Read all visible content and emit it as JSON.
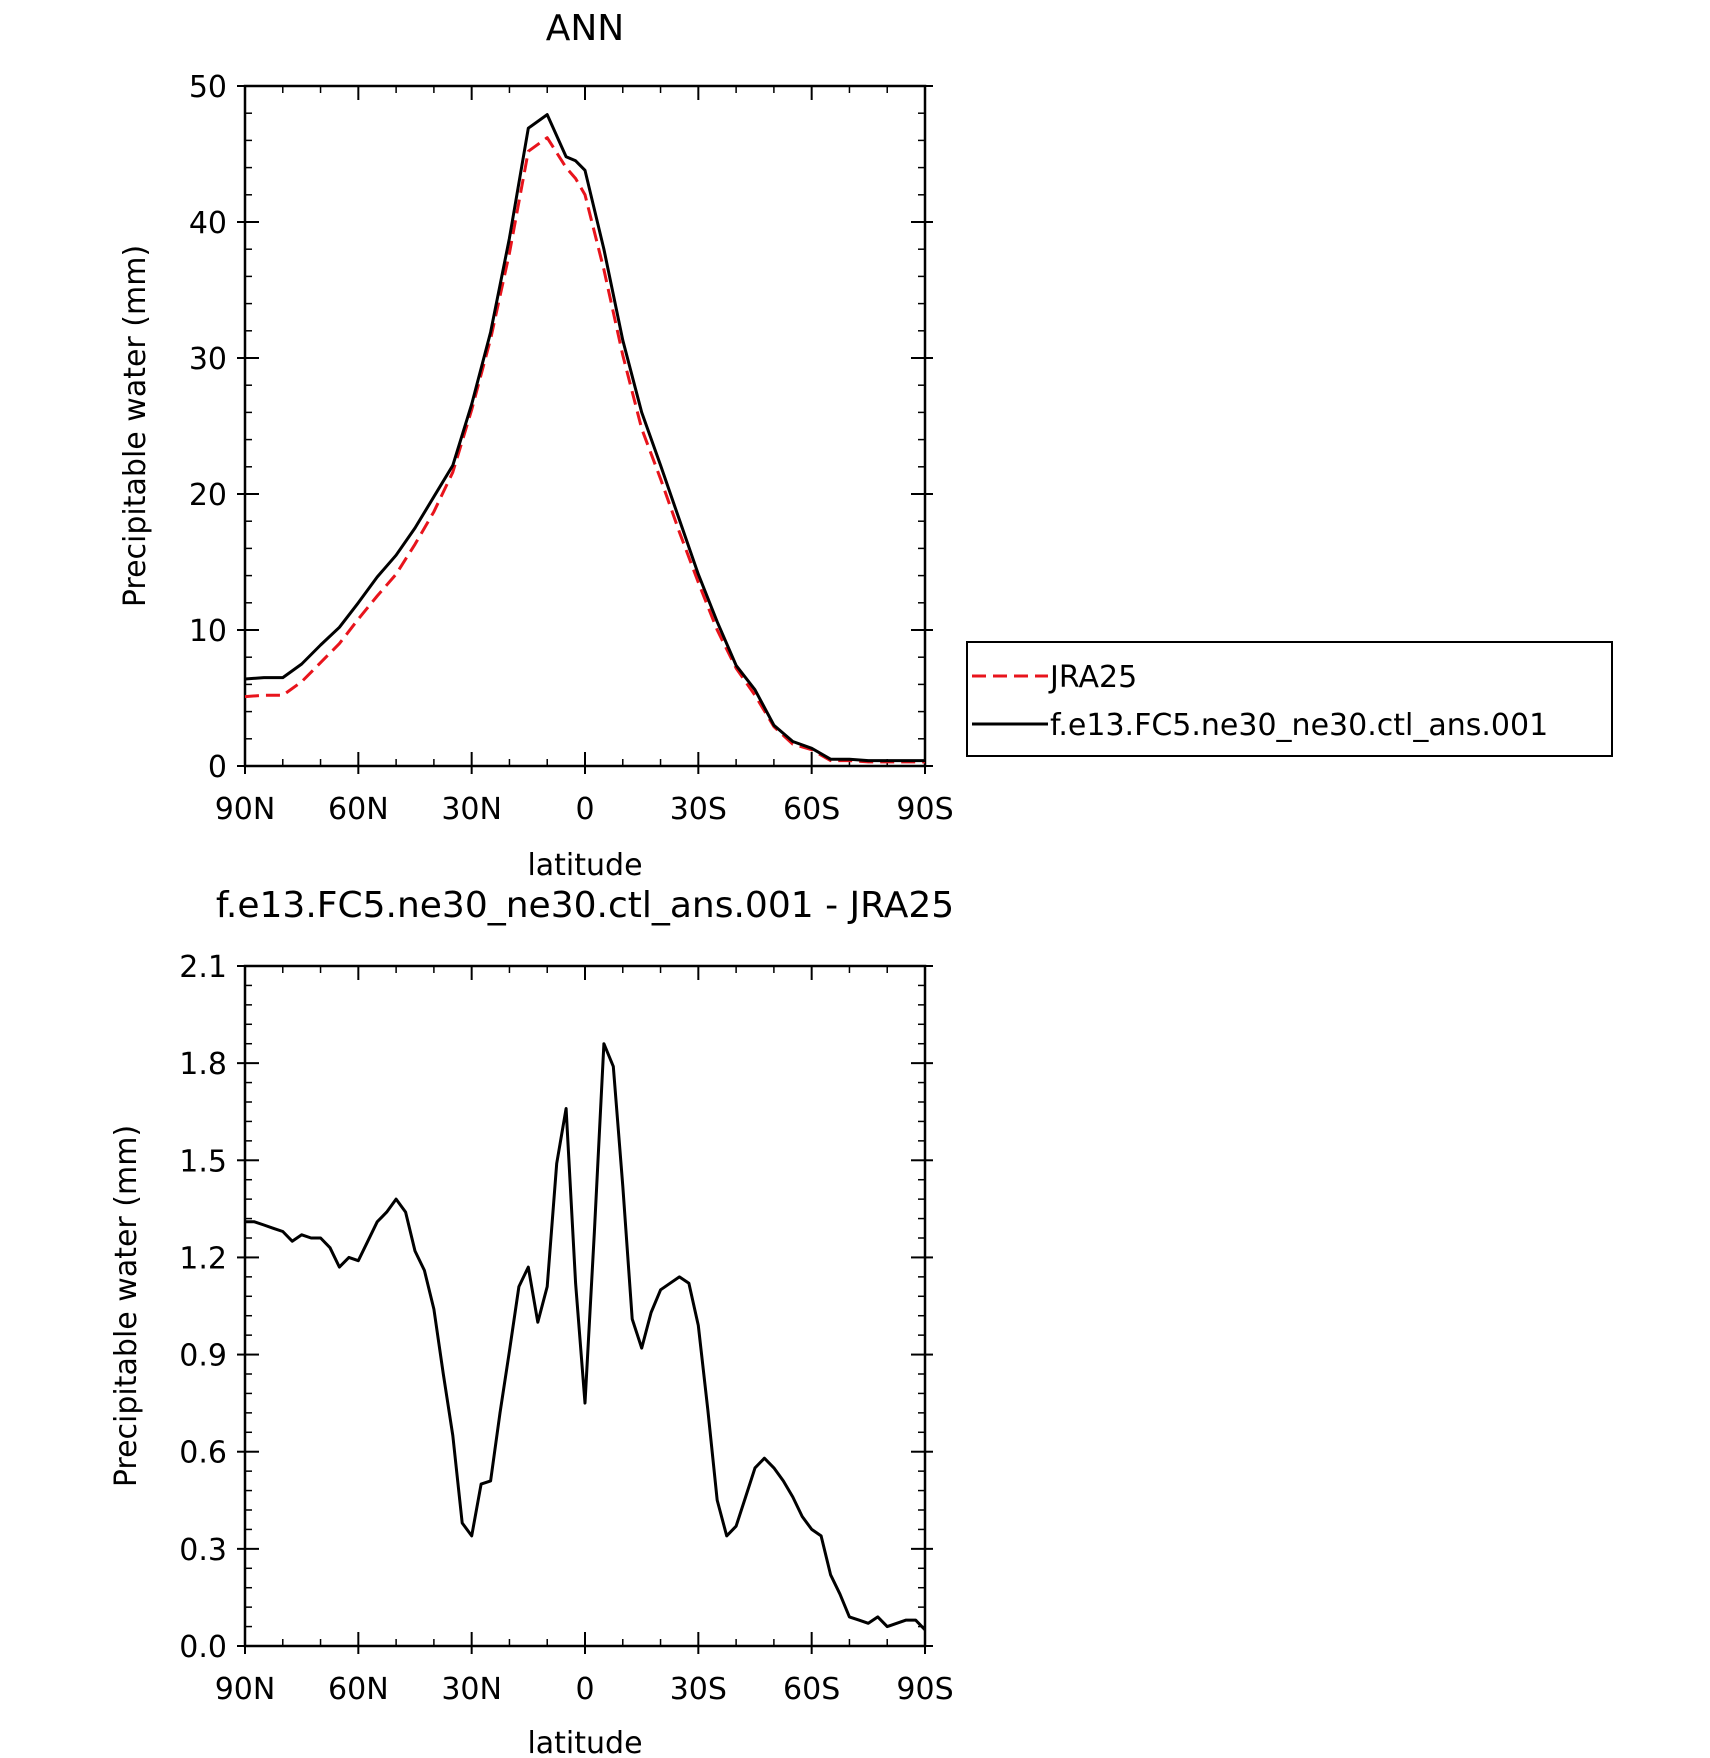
{
  "chart_data": [
    {
      "type": "line",
      "title": "ANN",
      "xlabel": "latitude",
      "ylabel": "Precipitable water (mm)",
      "xlim": [
        90,
        -90
      ],
      "ylim": [
        0,
        50
      ],
      "xticks": [
        90,
        60,
        30,
        0,
        -30,
        -60,
        -90
      ],
      "xtick_labels": [
        "90N",
        "60N",
        "30N",
        "0",
        "30S",
        "60S",
        "90S"
      ],
      "yticks": [
        0,
        10,
        20,
        30,
        40,
        50
      ],
      "ytick_labels": [
        "0",
        "10",
        "20",
        "30",
        "40",
        "50"
      ],
      "grid": false,
      "legend": "right",
      "x": [
        90,
        85,
        80,
        75,
        70,
        65,
        60,
        55,
        50,
        45,
        40,
        35,
        30,
        25,
        20,
        15,
        10,
        5,
        2.5,
        0,
        -5,
        -10,
        -15,
        -20,
        -25,
        -30,
        -35,
        -40,
        -45,
        -50,
        -55,
        -60,
        -65,
        -70,
        -75,
        -80,
        -85,
        -90
      ],
      "series": [
        {
          "name": "JRA25",
          "color": "#e8141c",
          "dash": "dashed",
          "values": [
            5.1,
            5.2,
            5.2,
            6.2,
            7.6,
            9.0,
            10.8,
            12.5,
            14.1,
            16.3,
            18.7,
            21.6,
            26.2,
            31.4,
            37.7,
            45.2,
            46.2,
            44.0,
            43.2,
            42.0,
            36.5,
            30.2,
            24.8,
            21.1,
            17.2,
            13.5,
            10.0,
            7.2,
            5.2,
            2.9,
            1.6,
            1.2,
            0.4,
            0.4,
            0.3,
            0.3,
            0.3,
            0.3
          ]
        },
        {
          "name": "f.e13.FC5.ne30_ne30.ctl_ans.001",
          "color": "#000000",
          "dash": "solid",
          "values": [
            6.4,
            6.5,
            6.5,
            7.5,
            8.9,
            10.2,
            12.0,
            13.9,
            15.5,
            17.5,
            19.8,
            22.1,
            26.6,
            31.9,
            38.8,
            46.9,
            47.9,
            44.8,
            44.5,
            43.8,
            38.0,
            31.3,
            26.0,
            22.1,
            18.1,
            14.1,
            10.6,
            7.4,
            5.6,
            3.0,
            1.8,
            1.3,
            0.5,
            0.5,
            0.4,
            0.4,
            0.4,
            0.4
          ]
        }
      ]
    },
    {
      "type": "line",
      "title": "f.e13.FC5.ne30_ne30.ctl_ans.001 - JRA25",
      "xlabel": "latitude",
      "ylabel": "Precipitable water (mm)",
      "xlim": [
        90,
        -90
      ],
      "ylim": [
        0.0,
        2.1
      ],
      "xticks": [
        90,
        60,
        30,
        0,
        -30,
        -60,
        -90
      ],
      "xtick_labels": [
        "90N",
        "60N",
        "30N",
        "0",
        "30S",
        "60S",
        "90S"
      ],
      "yticks": [
        0.0,
        0.3,
        0.6,
        0.9,
        1.2,
        1.5,
        1.8,
        2.1
      ],
      "ytick_labels": [
        "0.0",
        "0.3",
        "0.6",
        "0.9",
        "1.2",
        "1.5",
        "1.8",
        "2.1"
      ],
      "grid": false,
      "series": [
        {
          "color": "#000000",
          "dash": "solid",
          "x": [
            90,
            87.5,
            85,
            82.5,
            80,
            77.5,
            75,
            72.5,
            70,
            67.5,
            65,
            62.5,
            60,
            57.5,
            55,
            52.5,
            50,
            47.5,
            45,
            42.5,
            40,
            37.5,
            35,
            32.5,
            30,
            27.5,
            25,
            22.5,
            20,
            17.5,
            15,
            12.5,
            10,
            7.5,
            5,
            2.5,
            0,
            -2.5,
            -5,
            -7.5,
            -10,
            -12.5,
            -15,
            -17.5,
            -20,
            -22.5,
            -25,
            -27.5,
            -30,
            -32.5,
            -35,
            -37.5,
            -40,
            -42.5,
            -45,
            -47.5,
            -50,
            -52.5,
            -55,
            -57.5,
            -60,
            -62.5,
            -65,
            -67.5,
            -70,
            -72.5,
            -75,
            -77.5,
            -80,
            -82.5,
            -85,
            -87.5,
            -90
          ],
          "values": [
            1.31,
            1.31,
            1.3,
            1.29,
            1.28,
            1.25,
            1.27,
            1.26,
            1.26,
            1.23,
            1.17,
            1.2,
            1.19,
            1.25,
            1.31,
            1.34,
            1.38,
            1.34,
            1.22,
            1.16,
            1.04,
            0.84,
            0.65,
            0.38,
            0.34,
            0.5,
            0.51,
            0.72,
            0.91,
            1.11,
            1.17,
            1.0,
            1.11,
            1.49,
            1.66,
            1.12,
            0.75,
            1.28,
            1.86,
            1.79,
            1.42,
            1.01,
            0.92,
            1.03,
            1.1,
            1.12,
            1.14,
            1.12,
            0.99,
            0.73,
            0.45,
            0.34,
            0.37,
            0.46,
            0.55,
            0.58,
            0.55,
            0.51,
            0.46,
            0.4,
            0.36,
            0.34,
            0.22,
            0.16,
            0.09,
            0.08,
            0.07,
            0.09,
            0.06,
            0.07,
            0.08,
            0.08,
            0.05
          ]
        }
      ]
    }
  ]
}
